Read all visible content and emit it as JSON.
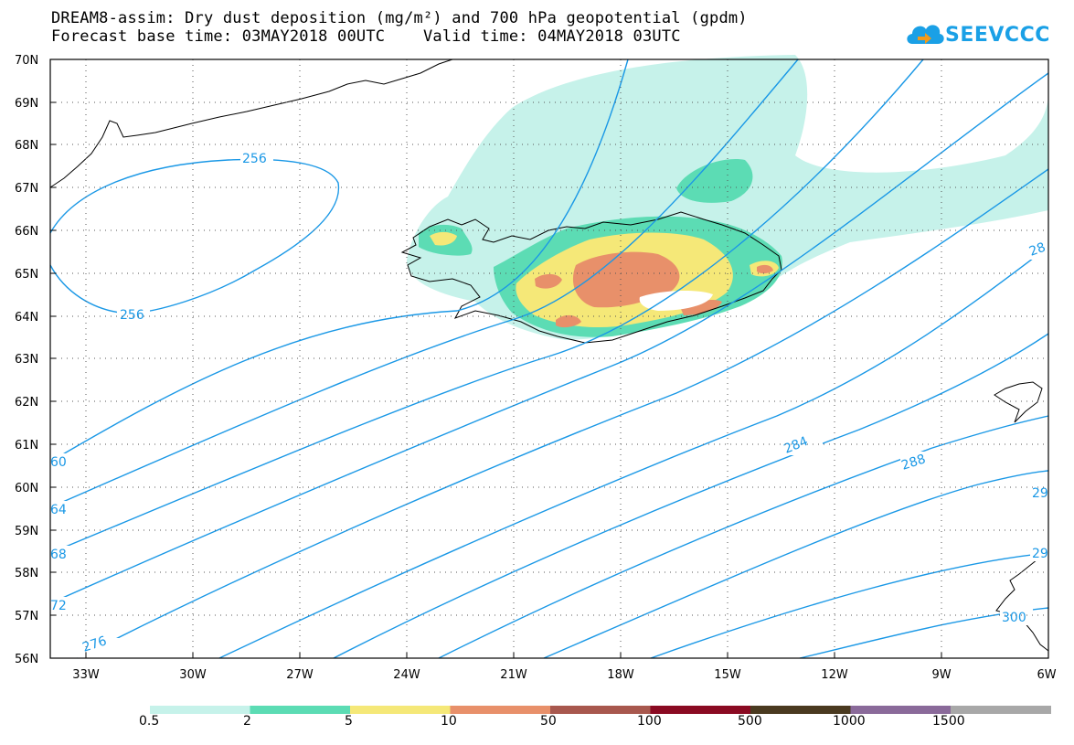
{
  "title_line1": "DREAM8-assim: Dry dust deposition (mg/m²) and 700 hPa geopotential (gpdm)",
  "title_line2": "Forecast base time: 03MAY2018 00UTC    Valid time: 04MAY2018 03UTC",
  "logo_text": "SEEVCCC",
  "lat_labels": [
    "70N",
    "69N",
    "68N",
    "67N",
    "66N",
    "65N",
    "64N",
    "63N",
    "62N",
    "61N",
    "60N",
    "59N",
    "58N",
    "57N",
    "56N"
  ],
  "lon_labels": [
    "33W",
    "30W",
    "27W",
    "24W",
    "21W",
    "18W",
    "15W",
    "12W",
    "9W",
    "6W"
  ],
  "contour_labels": [
    "256",
    "256",
    "60",
    "64",
    "68",
    "72",
    "276",
    "284",
    "288",
    "28",
    "29",
    "29",
    "300"
  ],
  "legend": {
    "labels": [
      "0.5",
      "2",
      "5",
      "10",
      "50",
      "100",
      "500",
      "1000",
      "1500"
    ],
    "colors": [
      "#c6f2ea",
      "#5cdcb4",
      "#f5e878",
      "#e8906a",
      "#a8584e",
      "#8a0a22",
      "#4a3a20",
      "#8a6a9a",
      "#a8a8a8"
    ]
  },
  "colors": {
    "contour": "#1a98e6",
    "logo": "#1aa0e6"
  }
}
